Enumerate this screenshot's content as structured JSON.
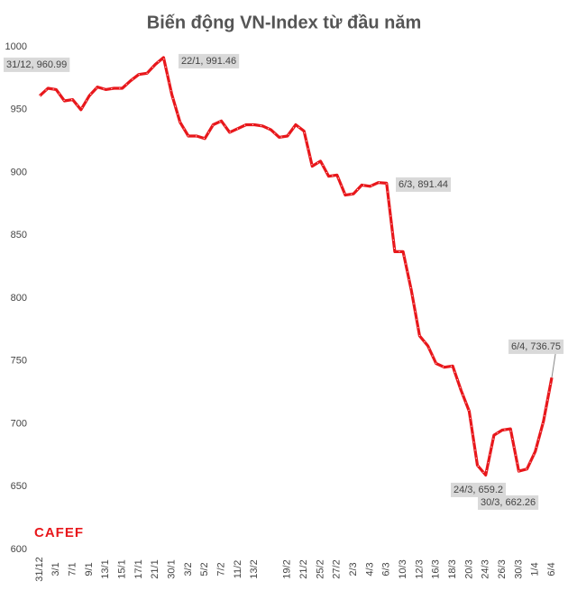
{
  "chart_data": {
    "type": "line",
    "title": "Biến động VN-Index từ đầu năm",
    "categories": [
      "31/12",
      null,
      "3/1",
      null,
      "7/1",
      null,
      "9/1",
      null,
      "13/1",
      null,
      "15/1",
      null,
      "17/1",
      null,
      "21/1",
      null,
      "30/1",
      null,
      "3/2",
      null,
      "5/2",
      null,
      "7/2",
      null,
      "11/2",
      null,
      "13/2",
      null,
      null,
      null,
      "19/2",
      null,
      "21/2",
      null,
      "25/2",
      null,
      "27/2",
      null,
      "2/3",
      null,
      "4/3",
      null,
      "6/3",
      null,
      "10/3",
      null,
      "12/3",
      null,
      "16/3",
      null,
      "18/3",
      null,
      "20/3",
      null,
      "24/3",
      null,
      "26/3",
      null,
      "30/3",
      null,
      "1/4",
      null,
      "6/4"
    ],
    "series": [
      {
        "name": "VN-Index",
        "color": "#e8171b",
        "values": [
          960.99,
          967,
          966,
          957,
          958,
          950,
          961,
          968,
          966,
          967,
          967,
          973,
          978,
          979,
          986,
          991.46,
          962,
          940,
          929,
          929,
          927,
          938,
          941,
          932,
          935,
          938,
          938,
          937,
          934,
          928,
          929,
          938,
          933,
          905,
          909,
          897,
          898,
          882,
          883,
          890,
          889,
          892,
          891.44,
          837,
          837,
          806,
          770,
          762,
          748,
          745,
          746,
          727,
          710,
          667,
          659.2,
          691,
          695,
          696,
          662.26,
          664,
          678,
          702,
          736.75
        ]
      }
    ],
    "ylim": [
      600,
      1000
    ],
    "yticks": [
      600,
      650,
      700,
      750,
      800,
      850,
      900,
      950,
      1000
    ],
    "grid": false,
    "annotations": [
      "31/12, 960.99",
      "22/1, 991.46",
      "6/3, 891.44",
      "24/3, 659.2",
      "30/3, 662.26",
      "6/4, 736.75"
    ],
    "watermark": "CAFEF"
  }
}
